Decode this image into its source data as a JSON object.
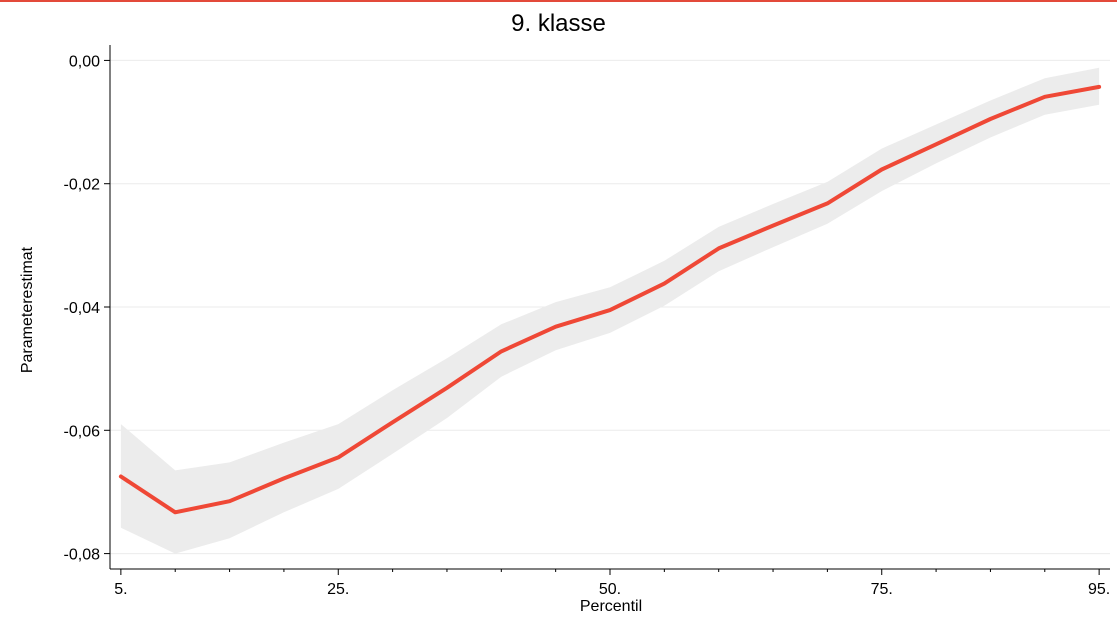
{
  "colors": {
    "top_rule": "#e34a3a",
    "line": "#ef4836",
    "band": "#ececec",
    "grid": "#ebebeb",
    "axis": "#000000"
  },
  "chart_data": {
    "type": "line",
    "title": "9. klasse",
    "xlabel": "Percentil",
    "ylabel": "Parameterestimat",
    "x": [
      5,
      10,
      15,
      20,
      25,
      30,
      35,
      40,
      45,
      50,
      55,
      60,
      65,
      70,
      75,
      80,
      85,
      90,
      95
    ],
    "xlim": [
      4,
      96
    ],
    "ylim": [
      -0.0825,
      0.0025
    ],
    "x_ticks": [
      5,
      25,
      50,
      75,
      95
    ],
    "x_tick_labels": [
      "5.",
      "25.",
      "50.",
      "75.",
      "95."
    ],
    "x_minor_ticks": [
      10,
      15,
      20,
      30,
      35,
      40,
      45,
      55,
      60,
      65,
      70,
      80,
      85,
      90
    ],
    "y_ticks": [
      0,
      -0.02,
      -0.04,
      -0.06,
      -0.08
    ],
    "y_tick_labels": [
      "0,00",
      "-0,02",
      "-0,04",
      "-0,06",
      "-0,08"
    ],
    "grid": true,
    "series": [
      {
        "values": [
          -0.0675,
          -0.0733,
          -0.0715,
          -0.0678,
          -0.0644,
          -0.0587,
          -0.0531,
          -0.0472,
          -0.0432,
          -0.0405,
          -0.0362,
          -0.0305,
          -0.0268,
          -0.0232,
          -0.0177,
          -0.0136,
          -0.0095,
          -0.0059,
          -0.0043
        ],
        "lower": [
          -0.0758,
          -0.08,
          -0.0775,
          -0.0733,
          -0.0695,
          -0.0638,
          -0.058,
          -0.0513,
          -0.047,
          -0.0442,
          -0.0398,
          -0.0342,
          -0.0303,
          -0.0265,
          -0.0212,
          -0.0167,
          -0.0125,
          -0.0088,
          -0.0072
        ],
        "upper": [
          -0.059,
          -0.0665,
          -0.0652,
          -0.062,
          -0.059,
          -0.0535,
          -0.0483,
          -0.0428,
          -0.0392,
          -0.0368,
          -0.0325,
          -0.027,
          -0.0233,
          -0.0197,
          -0.0143,
          -0.0104,
          -0.0065,
          -0.0029,
          -0.0012
        ]
      }
    ]
  }
}
